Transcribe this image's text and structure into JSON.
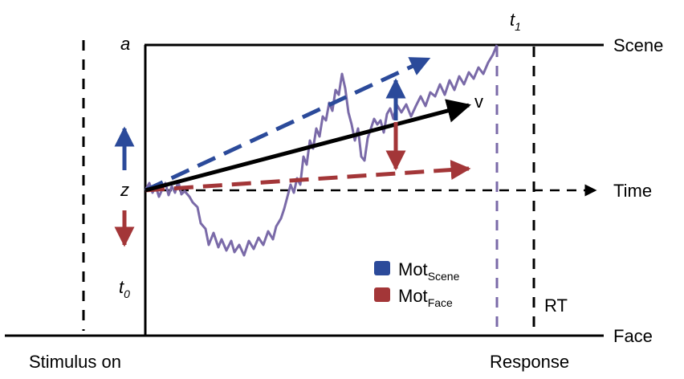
{
  "labels": {
    "a": "a",
    "z": "z",
    "t0": "t",
    "t0_sub": "0",
    "t1": "t",
    "t1_sub": "1",
    "v": "v",
    "scene": "Scene",
    "face": "Face",
    "time": "Time",
    "rt": "RT",
    "stimulus_on": "Stimulus on",
    "response": "Response"
  },
  "legend": [
    {
      "base": "Mot",
      "sub": "Scene",
      "color": "#2b4a9a"
    },
    {
      "base": "Mot",
      "sub": "Face",
      "color": "#a33638"
    }
  ],
  "colors": {
    "blue": "#2b4a9a",
    "red": "#a33638",
    "trace": "#7a6aa8",
    "t1_line": "#7a6aa8",
    "black": "#000000"
  }
}
